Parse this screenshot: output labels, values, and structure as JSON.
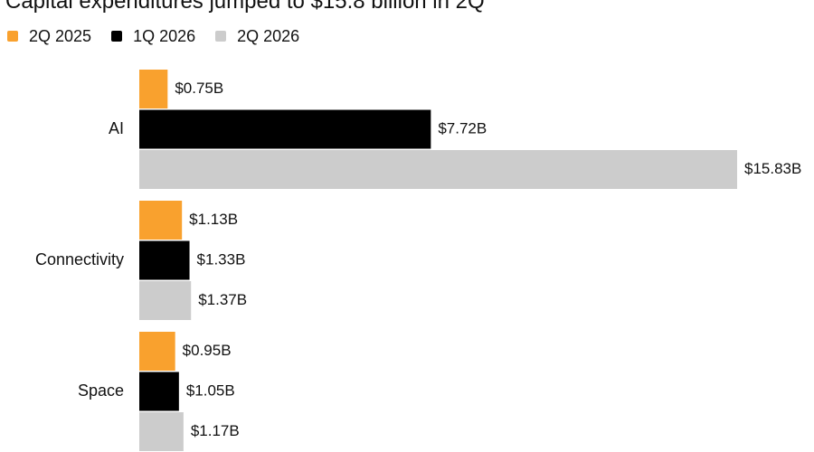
{
  "chart_data": {
    "type": "bar",
    "orientation": "horizontal",
    "title": "Capital expenditures jumped to $15.8 billion in 2Q",
    "categories": [
      "AI",
      "Connectivity",
      "Space"
    ],
    "series": [
      {
        "name": "2Q 2025",
        "color": "#f9a12e",
        "values": [
          0.75,
          1.13,
          0.95
        ],
        "labels": [
          "$0.75B",
          "$1.13B",
          "$0.95B"
        ]
      },
      {
        "name": "1Q 2026",
        "color": "#000000",
        "values": [
          7.72,
          1.33,
          1.05
        ],
        "labels": [
          "$7.72B",
          "$1.33B",
          "$1.05B"
        ]
      },
      {
        "name": "2Q 2026",
        "color": "#cccccc",
        "values": [
          15.83,
          1.37,
          1.17
        ],
        "labels": [
          "$15.83B",
          "$1.37B",
          "$1.17B"
        ]
      }
    ],
    "xlim": [
      0,
      15.83
    ],
    "grid": false,
    "legend_position": "top-left"
  }
}
